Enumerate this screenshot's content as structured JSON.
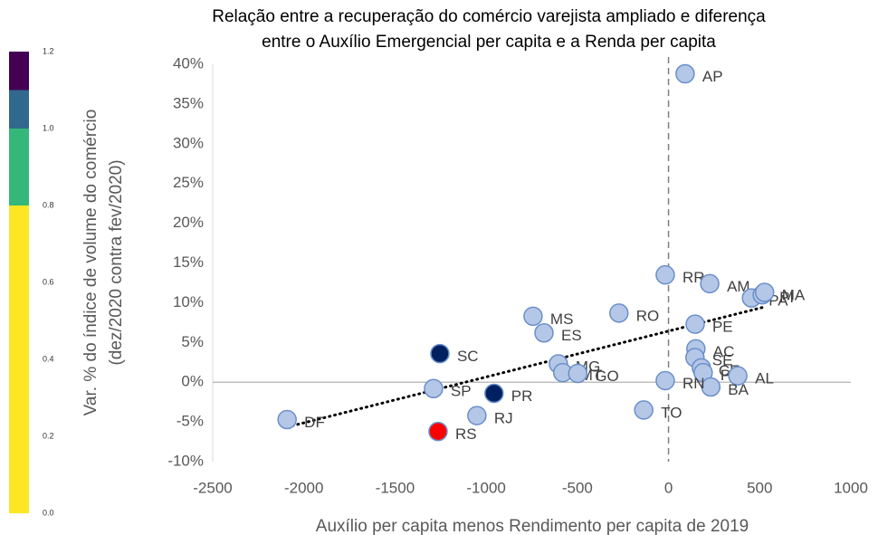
{
  "chart_data": {
    "type": "scatter",
    "title": [
      "Relação entre a recuperação do comércio varejista ampliado e  diferença",
      "entre o Auxílio Emergencial per capita e a Renda per capita"
    ],
    "xlabel": "Auxílio per capita menos Rendimento per capita de 2019",
    "ylabel": [
      "Var. % do índice de volume do comércio",
      "(dez/2020 contra fev/2020)"
    ],
    "labels": [
      "AP",
      "RR",
      "AM",
      "PA",
      "PI",
      "MA",
      "PE",
      "AC",
      "SE",
      "CE",
      "PB",
      "AL",
      "BA",
      "RN",
      "TO",
      "RO",
      "MS",
      "ES",
      "MG",
      "MT",
      "GO",
      "SC",
      "SP",
      "PR",
      "RJ",
      "DF",
      "RS"
    ],
    "x": [
      91,
      -18,
      226,
      455,
      514,
      527,
      146,
      150,
      145,
      180,
      190,
      380,
      232,
      -18,
      -136,
      -272,
      -743,
      -683,
      -604,
      -580,
      -498,
      -1254,
      -1289,
      -957,
      -1051,
      -2092,
      -1264
    ],
    "values": [
      38.8,
      13.5,
      12.4,
      10.6,
      11.0,
      11.3,
      7.3,
      4.2,
      3.1,
      1.8,
      1.2,
      0.8,
      -0.6,
      0.2,
      -3.5,
      8.7,
      8.3,
      6.2,
      2.3,
      1.2,
      1.1,
      3.6,
      -0.8,
      -1.4,
      -4.2,
      -4.7,
      -6.2
    ],
    "colors": [
      "#b4c7e7",
      "#b4c7e7",
      "#b4c7e7",
      "#b4c7e7",
      "#b4c7e7",
      "#b4c7e7",
      "#b4c7e7",
      "#b4c7e7",
      "#b4c7e7",
      "#b4c7e7",
      "#b4c7e7",
      "#b4c7e7",
      "#b4c7e7",
      "#b4c7e7",
      "#b4c7e7",
      "#b4c7e7",
      "#b4c7e7",
      "#b4c7e7",
      "#b4c7e7",
      "#b4c7e7",
      "#b4c7e7",
      "#002060",
      "#b4c7e7",
      "#002060",
      "#b4c7e7",
      "#b4c7e7",
      "#ff0000"
    ],
    "xlim": [
      -2500,
      1000
    ],
    "xticks": [
      -2500,
      -2000,
      -1500,
      -1000,
      -500,
      0,
      500,
      1000
    ],
    "ylim": [
      -10,
      40
    ],
    "yticks": [
      {
        "value": -10,
        "label": "-10%"
      },
      {
        "value": -5,
        "label": "-5%"
      },
      {
        "value": 0,
        "label": "0%"
      },
      {
        "value": 5,
        "label": "5%"
      },
      {
        "value": 10,
        "label": "10%"
      },
      {
        "value": 15,
        "label": "15%"
      },
      {
        "value": 20,
        "label": "20%"
      },
      {
        "value": 25,
        "label": "25%"
      },
      {
        "value": 30,
        "label": "30%"
      },
      {
        "value": 35,
        "label": "35%"
      },
      {
        "value": 40,
        "label": "40%"
      }
    ],
    "trendline": "linear",
    "zero_lines": true,
    "colorbar": {
      "lim": [
        0,
        1.2
      ],
      "ticks": [
        {
          "value": 0,
          "label": "0.0"
        },
        {
          "value": 0.2,
          "label": "0.2"
        },
        {
          "value": 0.4,
          "label": "0.4"
        },
        {
          "value": 0.6,
          "label": "0.6"
        },
        {
          "value": 0.8,
          "label": "0.8"
        },
        {
          "value": 1.0,
          "label": "1.0"
        },
        {
          "value": 1.2,
          "label": "1.2"
        }
      ],
      "segments": [
        {
          "from": 0,
          "to": 0.8,
          "color": "#fde725"
        },
        {
          "from": 0.8,
          "to": 1.0,
          "color": "#35b779"
        },
        {
          "from": 1.0,
          "to": 1.1,
          "color": "#31688e"
        },
        {
          "from": 1.1,
          "to": 1.2,
          "color": "#440154"
        }
      ]
    }
  }
}
